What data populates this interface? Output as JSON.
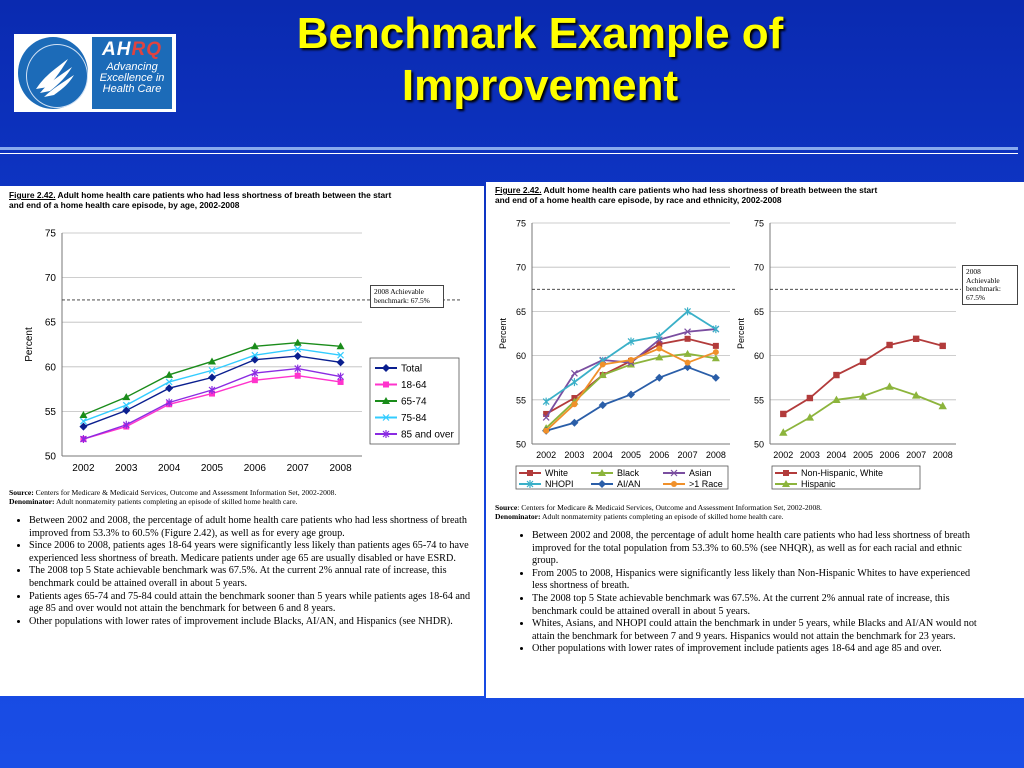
{
  "slide": {
    "title_line1": "Benchmark Example of",
    "title_line2": "Improvement"
  },
  "logo": {
    "ahrq_a": "AH",
    "ahrq_b": "RQ",
    "tagline1": "Advancing",
    "tagline2": "Excellence in",
    "tagline3": "Health Care"
  },
  "left": {
    "fig_num": "Figure 2.42.",
    "caption_rest": " Adult home health care patients who had less shortness of breath between the start",
    "caption_line2": "and end of a home health care episode, by age, 2002-2008",
    "benchmark_l1": "2008 Achievable",
    "benchmark_l2": "benchmark: 67.5%",
    "source_label": "Source:",
    "source_text": " Centers for Medicare & Medicaid Services, Outcome and Assessment Information Set, 2002-2008.",
    "denom_label": "Denominator:",
    "denom_text": " Adult nonmaternity patients completing an episode of skilled home health care.",
    "bullets": [
      "Between 2002 and 2008, the percentage of adult home health care patients who had less shortness of breath improved from 53.3% to 60.5% (Figure 2.42), as well as for every age group.",
      "Since 2006 to 2008, patients ages 18-64 years were significantly less likely than patients ages 65-74 to have experienced less shortness of breath.  Medicare patients under age 65 are usually disabled or have ESRD.",
      "The 2008 top 5 State achievable benchmark was 67.5%.  At the current 2% annual rate of increase, this benchmark could be attained overall in about 5 years.",
      "Patients ages 65-74 and 75-84 could attain the benchmark sooner than 5 years while patients ages 18-64 and age 85 and over would not attain the benchmark for between 6 and 8 years.",
      "Other populations with lower rates of improvement include Blacks, AI/AN, and Hispanics (see NHDR)."
    ]
  },
  "right": {
    "fig_num": "Figure 2.42.",
    "caption_rest": " Adult home health care patients who had less shortness of breath between the start",
    "caption_line2": "and end of a home health care episode, by race and ethnicity, 2002-2008",
    "benchmark_l1": "2008",
    "benchmark_l2": "Achievable",
    "benchmark_l3": "benchmark:",
    "benchmark_l4": "67.5%",
    "source_label": "Source",
    "source_text": ": Centers for Medicare & Medicaid Services, Outcome and Assessment Information Set, 2002-2008.",
    "denom_label": "Denominator:",
    "denom_text": " Adult nonmaternity patients completing an episode of skilled home health care.",
    "bullets": [
      "Between 2002 and 2008, the percentage of adult home health care patients who had less shortness of breath improved for the total population from 53.3% to 60.5% (see NHQR), as well as for each racial and ethnic group.",
      "From 2005 to 2008, Hispanics were significantly less likely than Non-Hispanic Whites to have experienced less shortness of breath.",
      "The 2008 top 5 State achievable benchmark was 67.5%.  At the current 2% annual rate of increase, this benchmark could be attained overall in about 5 years.",
      "Whites, Asians, and NHOPI could attain the benchmark in under 5 years, while Blacks and AI/AN would not attain the benchmark for between 7 and 9 years.  Hispanics would not attain the benchmark for 23 years.",
      "Other populations with lower rates of improvement include patients ages 18-64 and age 85 and over."
    ]
  },
  "chart_data": [
    {
      "type": "line",
      "title": "Adult home health care patients who had less shortness of breath, by age",
      "ylabel": "Percent",
      "ylim": [
        50,
        75
      ],
      "yticks": [
        50,
        55,
        60,
        65,
        70,
        75
      ],
      "x": [
        "2002",
        "2003",
        "2004",
        "2005",
        "2006",
        "2007",
        "2008"
      ],
      "benchmark": 67.5,
      "series": [
        {
          "name": "Total",
          "color": "#0a1f8f",
          "marker": "diamond",
          "values": [
            53.3,
            55.1,
            57.6,
            58.8,
            60.8,
            61.2,
            60.5
          ]
        },
        {
          "name": "18-64",
          "color": "#ff33cc",
          "marker": "square",
          "values": [
            51.9,
            53.3,
            55.8,
            57.0,
            58.5,
            59.0,
            58.3
          ]
        },
        {
          "name": "65-74",
          "color": "#1a8c1a",
          "marker": "triangle",
          "values": [
            54.6,
            56.6,
            59.1,
            60.6,
            62.3,
            62.7,
            62.3
          ]
        },
        {
          "name": "75-84",
          "color": "#33ccff",
          "marker": "x",
          "values": [
            53.9,
            55.7,
            58.3,
            59.6,
            61.3,
            62.0,
            61.3
          ]
        },
        {
          "name": "85 and over",
          "color": "#8a2be2",
          "marker": "star",
          "values": [
            51.9,
            53.5,
            56.0,
            57.4,
            59.3,
            59.8,
            58.9
          ]
        }
      ],
      "legend": "right"
    },
    {
      "type": "line",
      "title": "By race",
      "ylabel": "Percent",
      "ylim": [
        50,
        75
      ],
      "yticks": [
        50,
        55,
        60,
        65,
        70,
        75
      ],
      "x": [
        "2002",
        "2003",
        "2004",
        "2005",
        "2006",
        "2007",
        "2008"
      ],
      "benchmark": 67.5,
      "series": [
        {
          "name": "White",
          "color": "#b23b3b",
          "marker": "square",
          "values": [
            53.4,
            55.2,
            57.8,
            59.4,
            61.3,
            61.9,
            61.1
          ]
        },
        {
          "name": "Black",
          "color": "#8cb43c",
          "marker": "triangle",
          "values": [
            51.8,
            54.8,
            57.8,
            59.0,
            59.8,
            60.2,
            59.7
          ]
        },
        {
          "name": "Asian",
          "color": "#7a4ea0",
          "marker": "x",
          "values": [
            53.0,
            58.0,
            59.5,
            59.2,
            61.8,
            62.7,
            63.0
          ]
        },
        {
          "name": "NHOPI",
          "color": "#3ab0c8",
          "marker": "star",
          "values": [
            54.8,
            57.0,
            59.4,
            61.6,
            62.2,
            65.0,
            63.0
          ]
        },
        {
          "name": "AI/AN",
          "color": "#2a5ea8",
          "marker": "diamond",
          "values": [
            51.5,
            52.4,
            54.4,
            55.6,
            57.5,
            58.7,
            57.5
          ]
        },
        {
          "name": ">1 Race",
          "color": "#f0902a",
          "marker": "circle",
          "values": [
            51.5,
            54.5,
            59.0,
            59.5,
            60.8,
            59.2,
            60.4
          ]
        }
      ],
      "legend": "bottom"
    },
    {
      "type": "line",
      "title": "By ethnicity",
      "ylabel": "Percent",
      "ylim": [
        50,
        75
      ],
      "yticks": [
        50,
        55,
        60,
        65,
        70,
        75
      ],
      "x": [
        "2002",
        "2003",
        "2004",
        "2005",
        "2006",
        "2007",
        "2008"
      ],
      "benchmark": 67.5,
      "series": [
        {
          "name": "Non-Hispanic, White",
          "color": "#b23b3b",
          "marker": "square",
          "values": [
            53.4,
            55.2,
            57.8,
            59.3,
            61.2,
            61.9,
            61.1
          ]
        },
        {
          "name": "Hispanic",
          "color": "#8cb43c",
          "marker": "triangle",
          "values": [
            51.3,
            53.0,
            55.0,
            55.4,
            56.5,
            55.5,
            54.3
          ]
        }
      ],
      "legend": "bottom"
    }
  ]
}
